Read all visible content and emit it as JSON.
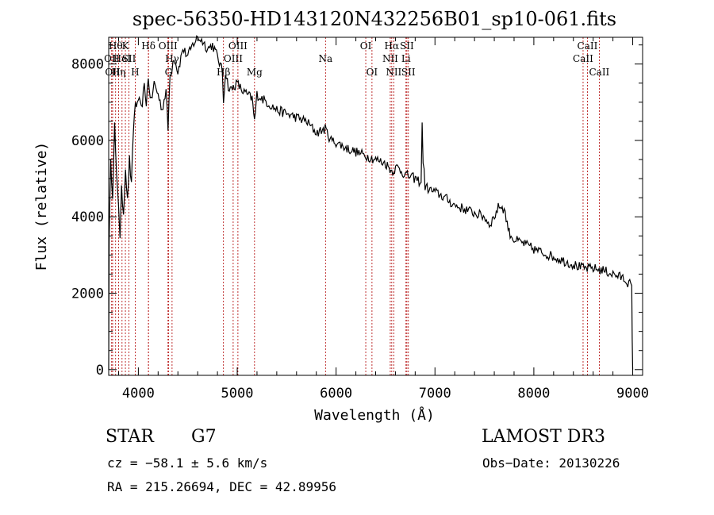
{
  "chart_data": {
    "type": "line",
    "title": "spec-56350-HD143120N432256B01_sp10-061.fits",
    "xlabel": "Wavelength (Å)",
    "ylabel": "Flux (relative)",
    "xlim": [
      3700,
      9100
    ],
    "ylim": [
      -150,
      8700
    ],
    "xticks": [
      4000,
      5000,
      6000,
      7000,
      8000,
      9000
    ],
    "xtick_labels": [
      "4000",
      "5000",
      "6000",
      "7000",
      "8000",
      "9000"
    ],
    "yticks": [
      0,
      2000,
      4000,
      6000,
      8000
    ],
    "ytick_labels": [
      "0",
      "2000",
      "4000",
      "6000",
      "8000"
    ],
    "series": [
      {
        "name": "flux",
        "x": [
          3700,
          3705,
          3720,
          3740,
          3760,
          3780,
          3800,
          3815,
          3830,
          3850,
          3870,
          3890,
          3910,
          3930,
          3950,
          3970,
          3990,
          4000,
          4030,
          4060,
          4080,
          4100,
          4130,
          4160,
          4200,
          4240,
          4280,
          4300,
          4320,
          4340,
          4360,
          4400,
          4450,
          4500,
          4550,
          4600,
          4650,
          4700,
          4750,
          4800,
          4850,
          4861,
          4880,
          4920,
          4960,
          5000,
          5050,
          5100,
          5150,
          5175,
          5200,
          5300,
          5400,
          5500,
          5600,
          5700,
          5800,
          5890,
          5950,
          6000,
          6100,
          6200,
          6300,
          6400,
          6500,
          6563,
          6620,
          6700,
          6800,
          6860,
          6870,
          6880,
          6900,
          6950,
          7000,
          7100,
          7200,
          7300,
          7400,
          7500,
          7550,
          7600,
          7650,
          7700,
          7750,
          7800,
          7900,
          8000,
          8100,
          8200,
          8300,
          8400,
          8500,
          8600,
          8700,
          8800,
          8900,
          8990,
          8995,
          9000
        ],
        "y": [
          0,
          3500,
          5400,
          4600,
          6400,
          5000,
          4300,
          3500,
          4700,
          4100,
          5300,
          4400,
          5500,
          4800,
          6300,
          7000,
          6900,
          7100,
          6800,
          7400,
          7000,
          7600,
          7000,
          7500,
          7200,
          6800,
          7300,
          6300,
          7700,
          7900,
          8200,
          7800,
          8400,
          8200,
          8500,
          8700,
          8600,
          8400,
          8500,
          8200,
          7800,
          7000,
          7800,
          7300,
          7400,
          7500,
          7300,
          7200,
          7100,
          6500,
          7200,
          7000,
          6800,
          6700,
          6600,
          6500,
          6200,
          6300,
          6000,
          5950,
          5800,
          5700,
          5600,
          5500,
          5400,
          5200,
          5300,
          5100,
          5000,
          4900,
          6400,
          5500,
          4800,
          4700,
          4650,
          4500,
          4300,
          4200,
          4100,
          4000,
          3800,
          4000,
          4300,
          4200,
          3600,
          3400,
          3300,
          3150,
          3050,
          2950,
          2850,
          2750,
          2650,
          2650,
          2600,
          2500,
          2400,
          2200,
          800,
          0
        ]
      }
    ],
    "lines": [
      {
        "x": 3730,
        "label": "OII",
        "row": 2
      },
      {
        "x": 3740,
        "label": "OII",
        "row": 3
      },
      {
        "x": 3770,
        "label": "Hθ",
        "row": 1
      },
      {
        "x": 3800,
        "label": "Hη",
        "row": 3
      },
      {
        "x": 3835,
        "label": "HeI",
        "row": 2
      },
      {
        "x": 3869,
        "label": "K",
        "row": 1
      },
      {
        "x": 3905,
        "label": "SII",
        "row": 2
      },
      {
        "x": 3968,
        "label": "H",
        "row": 3
      },
      {
        "x": 4102,
        "label": "Hδ",
        "row": 1
      },
      {
        "x": 4103,
        "label": "",
        "row": 0
      },
      {
        "x": 4300,
        "label": "OIII",
        "row": 1
      },
      {
        "x": 4305,
        "label": "G",
        "row": 3
      },
      {
        "x": 4341,
        "label": "Hγ",
        "row": 2
      },
      {
        "x": 4861,
        "label": "Hβ",
        "row": 3
      },
      {
        "x": 4959,
        "label": "OIII",
        "row": 2
      },
      {
        "x": 5007,
        "label": "OIII",
        "row": 1
      },
      {
        "x": 5175,
        "label": "Mg",
        "row": 3
      },
      {
        "x": 5893,
        "label": "Na",
        "row": 2
      },
      {
        "x": 6300,
        "label": "OI",
        "row": 1
      },
      {
        "x": 6363,
        "label": "OI",
        "row": 3
      },
      {
        "x": 6548,
        "label": "NII",
        "row": 2
      },
      {
        "x": 6563,
        "label": "Hα",
        "row": 1
      },
      {
        "x": 6583,
        "label": "NII",
        "row": 3
      },
      {
        "x": 6707,
        "label": "Li",
        "row": 2
      },
      {
        "x": 6716,
        "label": "SII",
        "row": 1
      },
      {
        "x": 6731,
        "label": "SII",
        "row": 3
      },
      {
        "x": 8498,
        "label": "CaII",
        "row": 2
      },
      {
        "x": 8542,
        "label": "CaII",
        "row": 1
      },
      {
        "x": 8662,
        "label": "CaII",
        "row": 3
      }
    ]
  },
  "info": {
    "object_class": "STAR",
    "subclass": "G7",
    "survey": "LAMOST DR3",
    "cz": "cz = −58.1 ± 5.6 km/s",
    "obs_date": "Obs−Date: 20130226",
    "coords": "RA = 215.26694, DEC =  42.89956"
  },
  "colors": {
    "spectrum": "#000000",
    "line_marker": "#b00000",
    "axes": "#000000",
    "background": "#ffffff"
  }
}
